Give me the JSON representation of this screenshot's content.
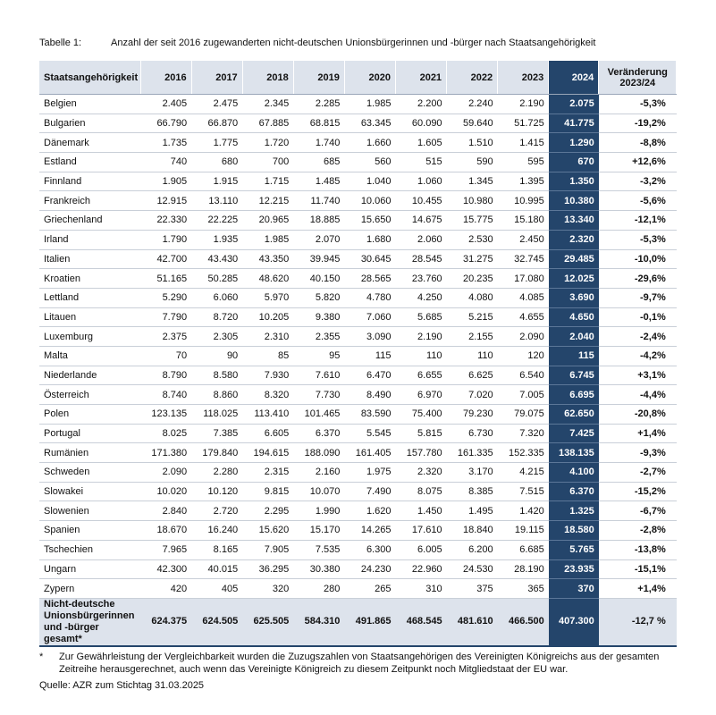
{
  "caption": {
    "label": "Tabelle 1:",
    "title": "Anzahl der seit 2016 zugewanderten nicht-deutschen Unionsbürgerinnen und -bürger nach Staatsangehörigkeit"
  },
  "table": {
    "header": [
      "Staatsangehörigkeit",
      "2016",
      "2017",
      "2018",
      "2019",
      "2020",
      "2021",
      "2022",
      "2023",
      "2024",
      "Veränderung 2023/24"
    ],
    "rows": [
      [
        "Belgien",
        "2.405",
        "2.475",
        "2.345",
        "2.285",
        "1.985",
        "2.200",
        "2.240",
        "2.190",
        "2.075",
        "-5,3%"
      ],
      [
        "Bulgarien",
        "66.790",
        "66.870",
        "67.885",
        "68.815",
        "63.345",
        "60.090",
        "59.640",
        "51.725",
        "41.775",
        "-19,2%"
      ],
      [
        "Dänemark",
        "1.735",
        "1.775",
        "1.720",
        "1.740",
        "1.660",
        "1.605",
        "1.510",
        "1.415",
        "1.290",
        "-8,8%"
      ],
      [
        "Estland",
        "740",
        "680",
        "700",
        "685",
        "560",
        "515",
        "590",
        "595",
        "670",
        "+12,6%"
      ],
      [
        "Finnland",
        "1.905",
        "1.915",
        "1.715",
        "1.485",
        "1.040",
        "1.060",
        "1.345",
        "1.395",
        "1.350",
        "-3,2%"
      ],
      [
        "Frankreich",
        "12.915",
        "13.110",
        "12.215",
        "11.740",
        "10.060",
        "10.455",
        "10.980",
        "10.995",
        "10.380",
        "-5,6%"
      ],
      [
        "Griechenland",
        "22.330",
        "22.225",
        "20.965",
        "18.885",
        "15.650",
        "14.675",
        "15.775",
        "15.180",
        "13.340",
        "-12,1%"
      ],
      [
        "Irland",
        "1.790",
        "1.935",
        "1.985",
        "2.070",
        "1.680",
        "2.060",
        "2.530",
        "2.450",
        "2.320",
        "-5,3%"
      ],
      [
        "Italien",
        "42.700",
        "43.430",
        "43.350",
        "39.945",
        "30.645",
        "28.545",
        "31.275",
        "32.745",
        "29.485",
        "-10,0%"
      ],
      [
        "Kroatien",
        "51.165",
        "50.285",
        "48.620",
        "40.150",
        "28.565",
        "23.760",
        "20.235",
        "17.080",
        "12.025",
        "-29,6%"
      ],
      [
        "Lettland",
        "5.290",
        "6.060",
        "5.970",
        "5.820",
        "4.780",
        "4.250",
        "4.080",
        "4.085",
        "3.690",
        "-9,7%"
      ],
      [
        "Litauen",
        "7.790",
        "8.720",
        "10.205",
        "9.380",
        "7.060",
        "5.685",
        "5.215",
        "4.655",
        "4.650",
        "-0,1%"
      ],
      [
        "Luxemburg",
        "2.375",
        "2.305",
        "2.310",
        "2.355",
        "3.090",
        "2.190",
        "2.155",
        "2.090",
        "2.040",
        "-2,4%"
      ],
      [
        "Malta",
        "70",
        "90",
        "85",
        "95",
        "115",
        "110",
        "110",
        "120",
        "115",
        "-4,2%"
      ],
      [
        "Niederlande",
        "8.790",
        "8.580",
        "7.930",
        "7.610",
        "6.470",
        "6.655",
        "6.625",
        "6.540",
        "6.745",
        "+3,1%"
      ],
      [
        "Österreich",
        "8.740",
        "8.860",
        "8.320",
        "7.730",
        "8.490",
        "6.970",
        "7.020",
        "7.005",
        "6.695",
        "-4,4%"
      ],
      [
        "Polen",
        "123.135",
        "118.025",
        "113.410",
        "101.465",
        "83.590",
        "75.400",
        "79.230",
        "79.075",
        "62.650",
        "-20,8%"
      ],
      [
        "Portugal",
        "8.025",
        "7.385",
        "6.605",
        "6.370",
        "5.545",
        "5.815",
        "6.730",
        "7.320",
        "7.425",
        "+1,4%"
      ],
      [
        "Rumänien",
        "171.380",
        "179.840",
        "194.615",
        "188.090",
        "161.405",
        "157.780",
        "161.335",
        "152.335",
        "138.135",
        "-9,3%"
      ],
      [
        "Schweden",
        "2.090",
        "2.280",
        "2.315",
        "2.160",
        "1.975",
        "2.320",
        "3.170",
        "4.215",
        "4.100",
        "-2,7%"
      ],
      [
        "Slowakei",
        "10.020",
        "10.120",
        "9.815",
        "10.070",
        "7.490",
        "8.075",
        "8.385",
        "7.515",
        "6.370",
        "-15,2%"
      ],
      [
        "Slowenien",
        "2.840",
        "2.720",
        "2.295",
        "1.990",
        "1.620",
        "1.450",
        "1.495",
        "1.420",
        "1.325",
        "-6,7%"
      ],
      [
        "Spanien",
        "18.670",
        "16.240",
        "15.620",
        "15.170",
        "14.265",
        "17.610",
        "18.840",
        "19.115",
        "18.580",
        "-2,8%"
      ],
      [
        "Tschechien",
        "7.965",
        "8.165",
        "7.905",
        "7.535",
        "6.300",
        "6.005",
        "6.200",
        "6.685",
        "5.765",
        "-13,8%"
      ],
      [
        "Ungarn",
        "42.300",
        "40.015",
        "36.295",
        "30.380",
        "24.230",
        "22.960",
        "24.530",
        "28.190",
        "23.935",
        "-15,1%"
      ],
      [
        "Zypern",
        "420",
        "405",
        "320",
        "280",
        "265",
        "310",
        "375",
        "365",
        "370",
        "+1,4%"
      ]
    ],
    "total": [
      "Nicht-deutsche Unionsbürgerinnen und -bürger gesamt*",
      "624.375",
      "624.505",
      "625.505",
      "584.310",
      "491.865",
      "468.545",
      "481.610",
      "466.500",
      "407.300",
      "-12,7 %"
    ]
  },
  "footnote": {
    "marker": "*",
    "text": "Zur Gewährleistung der Vergleichbarkeit wurden die Zuzugszahlen von Staatsangehörigen des Vereinigten Königreichs aus der gesamten Zeitreihe herausgerechnet, auch wenn das Vereinigte Königreich zu diesem Zeitpunkt noch Mitgliedstaat der EU war."
  },
  "source": "Quelle: AZR zum Stichtag 31.03.2025"
}
